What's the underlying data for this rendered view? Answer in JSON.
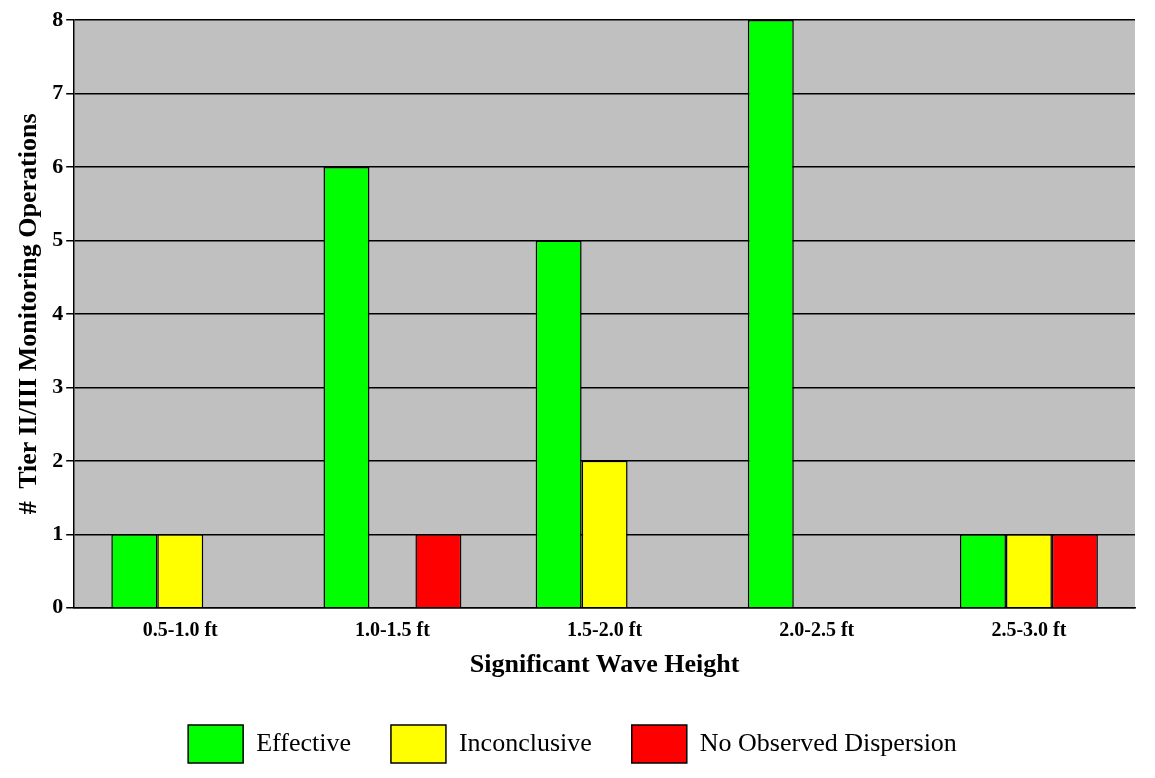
{
  "chart_data": {
    "type": "bar",
    "xlabel": "Significant Wave Height",
    "ylabel": "#  Tier II/III Monitoring Operations",
    "categories": [
      "0.5-1.0 ft",
      "1.0-1.5 ft",
      "1.5-2.0 ft",
      "2.0-2.5 ft",
      "2.5-3.0 ft"
    ],
    "series": [
      {
        "name": "Effective",
        "color": "#00ff00",
        "values": [
          1,
          6,
          5,
          8,
          1
        ]
      },
      {
        "name": "Inconclusive",
        "color": "#ffff00",
        "values": [
          1,
          0,
          2,
          0,
          1
        ]
      },
      {
        "name": "No Observed Dispersion",
        "color": "#ff0000",
        "values": [
          0,
          1,
          0,
          0,
          1
        ]
      }
    ],
    "ylim": [
      0,
      8
    ],
    "yticks": [
      0,
      1,
      2,
      3,
      4,
      5,
      6,
      7,
      8
    ],
    "grid": "y",
    "legend": "bottom"
  }
}
